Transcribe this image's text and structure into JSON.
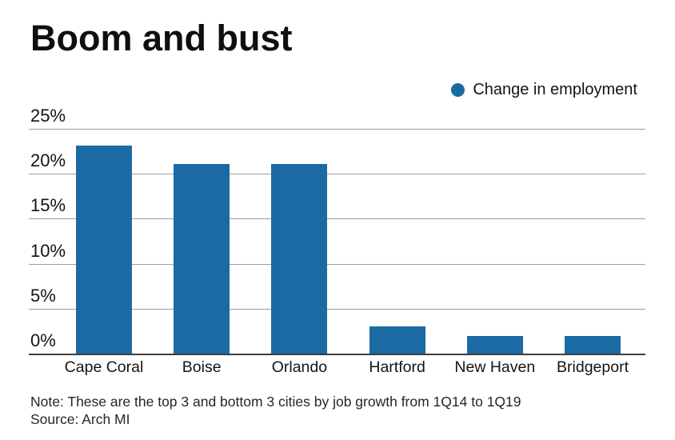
{
  "title": "Boom and bust",
  "legend": {
    "label": "Change in employment"
  },
  "note": "Note: These are the top 3 and bottom 3 cities by job growth from 1Q14 to 1Q19",
  "source": "Source: Arch MI",
  "colors": {
    "bar": "#1c6aa3",
    "gridline": "#9e9e9e",
    "axis": "#3d3d3d"
  },
  "chart_data": {
    "type": "bar",
    "title": "Boom and bust",
    "categories": [
      "Cape Coral",
      "Boise",
      "Orlando",
      "Hartford",
      "New Haven",
      "Bridgeport"
    ],
    "values": [
      23.1,
      21.1,
      21.1,
      3.0,
      2.0,
      2.0
    ],
    "series_name": "Change in employment",
    "xlabel": "",
    "ylabel": "",
    "ylim": [
      0,
      25
    ],
    "ytick_values": [
      0,
      5,
      10,
      15,
      20,
      25
    ],
    "ytick_labels": [
      "0%",
      "5%",
      "10%",
      "15%",
      "20%",
      "25%"
    ],
    "grid": "horizontal",
    "legend_position": "top-right"
  }
}
